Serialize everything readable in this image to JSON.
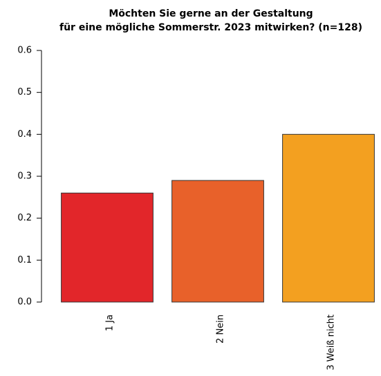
{
  "chart_data": {
    "type": "bar",
    "title": [
      "Möchten Sie gerne an der Gestaltung",
      "für eine mögliche Sommerstr. 2023 mitwirken? (n=128)"
    ],
    "categories": [
      "1 Ja",
      "2 Nein",
      "3 Weiß nicht"
    ],
    "values": [
      0.26,
      0.29,
      0.4
    ],
    "colors": [
      "#e2262a",
      "#e8612a",
      "#f3a020"
    ],
    "ylim": [
      0,
      0.6
    ],
    "yticks": [
      {
        "value": 0,
        "label": "0.0"
      },
      0.1,
      0.2,
      0.3,
      0.4,
      0.5,
      0.6
    ]
  }
}
